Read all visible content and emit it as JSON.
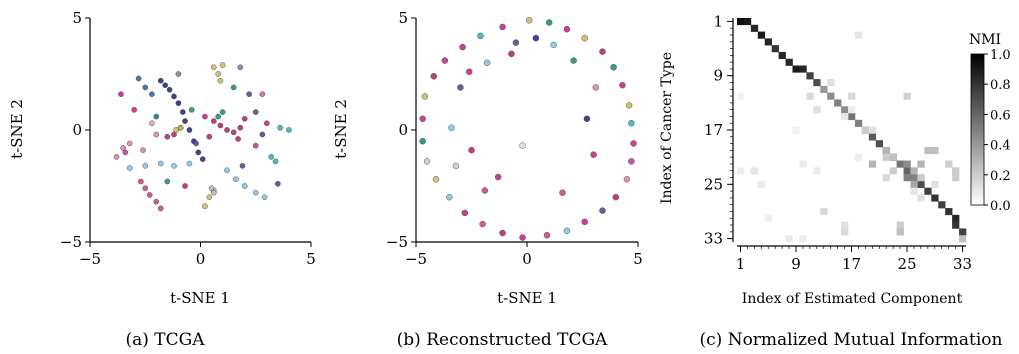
{
  "panels": {
    "a": {
      "caption": "(a) TCGA"
    },
    "b": {
      "caption": "(b) Reconstructed TCGA"
    },
    "c": {
      "caption": "(c) Normalized Mutual Information"
    }
  },
  "chart_data": [
    {
      "type": "scatter",
      "id": "tcga",
      "xlabel": "t-SNE 1",
      "ylabel": "t-SNE 2",
      "xlim": [
        -5,
        5
      ],
      "ylim": [
        -5,
        5
      ],
      "xticks": [
        -5,
        0,
        5
      ],
      "yticks": [
        -5,
        0,
        5
      ],
      "xtick_labels": [
        "−5",
        "0",
        "5"
      ],
      "ytick_labels": [
        "−5",
        "0",
        "5"
      ],
      "grid": false,
      "points": [
        {
          "x": -1.8,
          "y": 2.2,
          "c": "#2b2f7f"
        },
        {
          "x": -1.6,
          "y": 2.0,
          "c": "#2b2f7f"
        },
        {
          "x": -1.4,
          "y": 1.8,
          "c": "#2b2f7f"
        },
        {
          "x": -1.2,
          "y": 1.5,
          "c": "#2b2f7f"
        },
        {
          "x": -1.0,
          "y": 1.2,
          "c": "#2b2f7f"
        },
        {
          "x": -0.8,
          "y": 0.8,
          "c": "#2b2f7f"
        },
        {
          "x": -0.7,
          "y": 0.4,
          "c": "#2b2f7f"
        },
        {
          "x": -0.5,
          "y": 0.0,
          "c": "#2b2f7f"
        },
        {
          "x": -0.3,
          "y": -0.5,
          "c": "#2b2f7f"
        },
        {
          "x": -0.1,
          "y": -1.0,
          "c": "#2b2f7f"
        },
        {
          "x": 0.1,
          "y": -1.3,
          "c": "#2b2f7f"
        },
        {
          "x": -2.8,
          "y": 2.3,
          "c": "#2f6f9f"
        },
        {
          "x": -2.5,
          "y": 1.9,
          "c": "#2f6f9f"
        },
        {
          "x": -2.2,
          "y": 1.6,
          "c": "#2f6f9f"
        },
        {
          "x": -1.5,
          "y": -0.3,
          "c": "#b22d6b"
        },
        {
          "x": -1.2,
          "y": -0.2,
          "c": "#b22d6b"
        },
        {
          "x": -0.9,
          "y": 0.1,
          "c": "#b22d6b"
        },
        {
          "x": 0.6,
          "y": 0.4,
          "c": "#b22d6b"
        },
        {
          "x": 0.9,
          "y": 0.2,
          "c": "#b22d6b"
        },
        {
          "x": 1.2,
          "y": 0.0,
          "c": "#b22d6b"
        },
        {
          "x": 1.5,
          "y": -0.1,
          "c": "#b22d6b"
        },
        {
          "x": 1.8,
          "y": 0.1,
          "c": "#b22d6b"
        },
        {
          "x": 2.0,
          "y": 0.5,
          "c": "#b22d6b"
        },
        {
          "x": 1.7,
          "y": -0.4,
          "c": "#b22d6b"
        },
        {
          "x": 0.4,
          "y": -0.3,
          "c": "#b22d6b"
        },
        {
          "x": 0.2,
          "y": 0.6,
          "c": "#c82a8a"
        },
        {
          "x": -3.5,
          "y": -0.8,
          "c": "#de84b6"
        },
        {
          "x": -3.2,
          "y": -0.6,
          "c": "#de84b6"
        },
        {
          "x": -3.8,
          "y": -1.2,
          "c": "#de84b6"
        },
        {
          "x": -2.6,
          "y": -0.9,
          "c": "#de84b6"
        },
        {
          "x": -2.0,
          "y": -0.2,
          "c": "#de84b6"
        },
        {
          "x": -3.2,
          "y": -1.7,
          "c": "#87c7e8"
        },
        {
          "x": -2.5,
          "y": -1.6,
          "c": "#87c7e8"
        },
        {
          "x": -1.8,
          "y": -1.5,
          "c": "#87c7e8"
        },
        {
          "x": -1.2,
          "y": -1.6,
          "c": "#87c7e8"
        },
        {
          "x": -0.5,
          "y": -1.5,
          "c": "#87c7e8"
        },
        {
          "x": 1.2,
          "y": -1.8,
          "c": "#87c7e8"
        },
        {
          "x": 1.6,
          "y": -2.2,
          "c": "#87c7e8"
        },
        {
          "x": 2.0,
          "y": -2.5,
          "c": "#87c7e8"
        },
        {
          "x": 2.5,
          "y": -2.8,
          "c": "#87c7e8"
        },
        {
          "x": 2.9,
          "y": -3.0,
          "c": "#87c7e8"
        },
        {
          "x": -2.5,
          "y": -2.6,
          "c": "#cf4d6f"
        },
        {
          "x": -2.3,
          "y": -2.9,
          "c": "#cf4d6f"
        },
        {
          "x": -2.0,
          "y": -3.2,
          "c": "#cf4d6f"
        },
        {
          "x": -1.8,
          "y": -3.5,
          "c": "#cf4d6f"
        },
        {
          "x": -2.7,
          "y": -2.3,
          "c": "#cf4d6f"
        },
        {
          "x": 0.6,
          "y": 2.8,
          "c": "#d2b86a"
        },
        {
          "x": 0.8,
          "y": 2.5,
          "c": "#d2b86a"
        },
        {
          "x": 0.9,
          "y": 2.2,
          "c": "#d2b86a"
        },
        {
          "x": 1.0,
          "y": 2.9,
          "c": "#d2b86a"
        },
        {
          "x": -0.9,
          "y": 0.1,
          "c": "#c7c05a"
        },
        {
          "x": -1.1,
          "y": 0.0,
          "c": "#c7c05a"
        },
        {
          "x": 0.2,
          "y": -3.4,
          "c": "#d2b86a"
        },
        {
          "x": 0.4,
          "y": -3.0,
          "c": "#d2b86a"
        },
        {
          "x": 0.6,
          "y": -2.7,
          "c": "#d2b86a"
        },
        {
          "x": 0.8,
          "y": 0.6,
          "c": "#23936b"
        },
        {
          "x": 1.0,
          "y": 0.8,
          "c": "#23936b"
        },
        {
          "x": -0.4,
          "y": 0.9,
          "c": "#23936b"
        },
        {
          "x": 1.5,
          "y": 1.9,
          "c": "#23936b"
        },
        {
          "x": 2.8,
          "y": -0.2,
          "c": "#5b4a8c"
        },
        {
          "x": 2.5,
          "y": 0.8,
          "c": "#5b4a8c"
        },
        {
          "x": 2.2,
          "y": 1.6,
          "c": "#5b4a8c"
        },
        {
          "x": 1.9,
          "y": -1.6,
          "c": "#5b4a8c"
        },
        {
          "x": -0.2,
          "y": -0.6,
          "c": "#5b4a8c"
        },
        {
          "x": 3.2,
          "y": -1.2,
          "c": "#3bb6b0"
        },
        {
          "x": 3.4,
          "y": -1.4,
          "c": "#3bb6b0"
        },
        {
          "x": 4.0,
          "y": 0.0,
          "c": "#3bb6b0"
        },
        {
          "x": 3.6,
          "y": 0.1,
          "c": "#3bb6b0"
        },
        {
          "x": -3.6,
          "y": 1.6,
          "c": "#c82a8a"
        },
        {
          "x": -3.0,
          "y": 0.9,
          "c": "#c82a8a"
        },
        {
          "x": -3.4,
          "y": -1.0,
          "c": "#b04f95"
        },
        {
          "x": 1.8,
          "y": 2.8,
          "c": "#7f7fb0"
        },
        {
          "x": 2.8,
          "y": 1.6,
          "c": "#c96bb0"
        },
        {
          "x": 3.0,
          "y": 0.3,
          "c": "#c82a8a"
        },
        {
          "x": 0.5,
          "y": -2.6,
          "c": "#bbbbbb"
        },
        {
          "x": 0.6,
          "y": -2.8,
          "c": "#bbbbbb"
        },
        {
          "x": -1.0,
          "y": 2.5,
          "c": "#888888"
        },
        {
          "x": -2.2,
          "y": 0.3,
          "c": "#e0a1c0"
        },
        {
          "x": -2.0,
          "y": 0.6,
          "c": "#1f7a8c"
        },
        {
          "x": -1.5,
          "y": -2.3,
          "c": "#23936b"
        },
        {
          "x": 2.5,
          "y": -0.7,
          "c": "#b9448a"
        },
        {
          "x": 3.5,
          "y": -2.4,
          "c": "#5b4a8c"
        },
        {
          "x": -0.7,
          "y": -2.5,
          "c": "#b22d6b"
        }
      ]
    },
    {
      "type": "scatter",
      "id": "reconstructed",
      "xlabel": "t-SNE 1",
      "ylabel": "t-SNE 2",
      "xlim": [
        -5,
        5
      ],
      "ylim": [
        -5,
        5
      ],
      "xticks": [
        -5,
        0,
        5
      ],
      "yticks": [
        -5,
        0,
        5
      ],
      "xtick_labels": [
        "−5",
        "0",
        "5"
      ],
      "ytick_labels": [
        "−5",
        "0",
        "5"
      ],
      "grid": false,
      "points": [
        {
          "x": 0.1,
          "y": 4.9,
          "c": "#d2b86a"
        },
        {
          "x": 1.0,
          "y": 4.8,
          "c": "#23936b"
        },
        {
          "x": 1.8,
          "y": 4.5,
          "c": "#c82a8a"
        },
        {
          "x": 2.6,
          "y": 4.1,
          "c": "#d2b86a"
        },
        {
          "x": 3.4,
          "y": 3.5,
          "c": "#b22d6b"
        },
        {
          "x": 3.9,
          "y": 2.8,
          "c": "#23936b"
        },
        {
          "x": 4.3,
          "y": 2.0,
          "c": "#c82a8a"
        },
        {
          "x": 4.6,
          "y": 1.1,
          "c": "#c7c05a"
        },
        {
          "x": 4.7,
          "y": 0.3,
          "c": "#3bb6b0"
        },
        {
          "x": 4.8,
          "y": -0.6,
          "c": "#c82a8a"
        },
        {
          "x": 4.7,
          "y": -1.4,
          "c": "#b04f95"
        },
        {
          "x": 4.5,
          "y": -2.2,
          "c": "#de84b6"
        },
        {
          "x": 4.0,
          "y": -3.0,
          "c": "#b22d6b"
        },
        {
          "x": 3.4,
          "y": -3.6,
          "c": "#5b4a8c"
        },
        {
          "x": 2.6,
          "y": -4.1,
          "c": "#c82a8a"
        },
        {
          "x": 1.8,
          "y": -4.5,
          "c": "#87c7e8"
        },
        {
          "x": 0.9,
          "y": -4.7,
          "c": "#cf4d6f"
        },
        {
          "x": -0.2,
          "y": -4.8,
          "c": "#c82a8a"
        },
        {
          "x": -1.1,
          "y": -4.6,
          "c": "#b22d6b"
        },
        {
          "x": -2.0,
          "y": -4.2,
          "c": "#cf4d6f"
        },
        {
          "x": -2.8,
          "y": -3.7,
          "c": "#c82a8a"
        },
        {
          "x": -3.5,
          "y": -3.0,
          "c": "#87c7e8"
        },
        {
          "x": -4.1,
          "y": -2.2,
          "c": "#d2b86a"
        },
        {
          "x": -4.5,
          "y": -1.4,
          "c": "#cccccc"
        },
        {
          "x": -4.7,
          "y": -0.5,
          "c": "#23936b"
        },
        {
          "x": -4.7,
          "y": 0.5,
          "c": "#c82a8a"
        },
        {
          "x": -4.6,
          "y": 1.5,
          "c": "#c7c05a"
        },
        {
          "x": -4.2,
          "y": 2.4,
          "c": "#b22d6b"
        },
        {
          "x": -3.7,
          "y": 3.1,
          "c": "#c82a8a"
        },
        {
          "x": -2.9,
          "y": 3.7,
          "c": "#c82a8a"
        },
        {
          "x": -2.1,
          "y": 4.2,
          "c": "#3bb6b0"
        },
        {
          "x": -1.1,
          "y": 4.6,
          "c": "#c82a8a"
        },
        {
          "x": 0.4,
          "y": 4.1,
          "c": "#2b2f7f"
        },
        {
          "x": -0.5,
          "y": 3.9,
          "c": "#5b4a8c"
        },
        {
          "x": 1.2,
          "y": 3.8,
          "c": "#87c7e8"
        },
        {
          "x": -1.8,
          "y": 3.0,
          "c": "#87c7e8"
        },
        {
          "x": -2.6,
          "y": 2.6,
          "c": "#c82a8a"
        },
        {
          "x": 3.1,
          "y": 1.9,
          "c": "#de84b6"
        },
        {
          "x": 2.7,
          "y": 0.5,
          "c": "#2b2f7f"
        },
        {
          "x": -3.0,
          "y": 1.9,
          "c": "#5b4a8c"
        },
        {
          "x": -3.4,
          "y": 0.1,
          "c": "#87c7e8"
        },
        {
          "x": -2.5,
          "y": -0.9,
          "c": "#b22d6b"
        },
        {
          "x": -1.3,
          "y": -2.1,
          "c": "#c82a8a"
        },
        {
          "x": -1.9,
          "y": -2.7,
          "c": "#cf4d6f"
        },
        {
          "x": 1.6,
          "y": -2.8,
          "c": "#cf4d6f"
        },
        {
          "x": 3.0,
          "y": -1.1,
          "c": "#c82a8a"
        },
        {
          "x": -3.2,
          "y": -1.6,
          "c": "#cccccc"
        },
        {
          "x": -0.2,
          "y": -0.7,
          "c": "#dddddd"
        },
        {
          "x": 2.1,
          "y": 3.1,
          "c": "#23936b"
        },
        {
          "x": -0.7,
          "y": 3.4,
          "c": "#b22d6b"
        }
      ]
    },
    {
      "type": "heatmap",
      "id": "nmi",
      "xlabel": "Index of Estimated Component",
      "ylabel": "Index of Cancer Type",
      "rows": 33,
      "cols": 33,
      "xtick_labels": [
        "1",
        "9",
        "17",
        "25",
        "33"
      ],
      "ytick_labels": [
        "1",
        "9",
        "17",
        "25",
        "33"
      ],
      "colorbar": {
        "label": "NMI",
        "ticks": [
          "0.0",
          "0.2",
          "0.4",
          "0.6",
          "0.8",
          "1.0"
        ],
        "vmin": 0,
        "vmax": 1
      },
      "cells": [
        [
          1,
          1,
          0.95
        ],
        [
          1,
          2,
          0.9
        ],
        [
          2,
          3,
          0.85
        ],
        [
          3,
          4,
          0.9
        ],
        [
          4,
          5,
          0.85
        ],
        [
          5,
          6,
          0.8
        ],
        [
          6,
          7,
          0.85
        ],
        [
          7,
          8,
          0.85
        ],
        [
          8,
          9,
          0.9
        ],
        [
          8,
          10,
          0.85
        ],
        [
          9,
          11,
          0.75
        ],
        [
          10,
          12,
          0.7
        ],
        [
          11,
          13,
          0.4
        ],
        [
          12,
          14,
          0.45
        ],
        [
          13,
          15,
          0.5
        ],
        [
          14,
          16,
          0.45
        ],
        [
          15,
          17,
          0.55
        ],
        [
          16,
          18,
          0.5
        ],
        [
          17,
          19,
          0.6
        ],
        [
          18,
          20,
          0.65
        ],
        [
          19,
          21,
          0.7
        ],
        [
          20,
          22,
          0.75
        ],
        [
          21,
          23,
          0.65
        ],
        [
          22,
          24,
          0.55
        ],
        [
          23,
          25,
          0.6
        ],
        [
          24,
          26,
          0.5
        ],
        [
          25,
          27,
          0.7
        ],
        [
          26,
          28,
          0.75
        ],
        [
          27,
          29,
          0.8
        ],
        [
          28,
          30,
          0.75
        ],
        [
          29,
          31,
          0.8
        ],
        [
          30,
          32,
          0.85
        ],
        [
          31,
          32,
          0.8
        ],
        [
          32,
          33,
          0.75
        ],
        [
          3,
          18,
          0.1
        ],
        [
          10,
          14,
          0.12
        ],
        [
          12,
          11,
          0.15
        ],
        [
          12,
          17,
          0.15
        ],
        [
          12,
          25,
          0.18
        ],
        [
          14,
          12,
          0.12
        ],
        [
          15,
          16,
          0.1
        ],
        [
          17,
          19,
          0.2
        ],
        [
          17,
          20,
          0.12
        ],
        [
          20,
          22,
          0.3
        ],
        [
          21,
          22,
          0.2
        ],
        [
          21,
          23,
          0.25
        ],
        [
          22,
          20,
          0.3
        ],
        [
          22,
          25,
          0.45
        ],
        [
          22,
          27,
          0.3
        ],
        [
          23,
          23,
          0.2
        ],
        [
          23,
          26,
          0.3
        ],
        [
          24,
          22,
          0.15
        ],
        [
          24,
          25,
          0.5
        ],
        [
          24,
          27,
          0.2
        ],
        [
          25,
          26,
          0.35
        ],
        [
          25,
          29,
          0.12
        ],
        [
          20,
          28,
          0.25
        ],
        [
          20,
          29,
          0.25
        ],
        [
          22,
          31,
          0.2
        ],
        [
          23,
          32,
          0.2
        ],
        [
          24,
          32,
          0.2
        ],
        [
          26,
          26,
          0.1
        ],
        [
          27,
          27,
          0.12
        ],
        [
          29,
          13,
          0.15
        ],
        [
          31,
          16,
          0.12
        ],
        [
          32,
          16,
          0.15
        ],
        [
          31,
          24,
          0.2
        ],
        [
          32,
          24,
          0.25
        ],
        [
          33,
          33,
          0.25
        ],
        [
          23,
          1,
          0.08
        ],
        [
          23,
          3,
          0.1
        ],
        [
          25,
          4,
          0.08
        ],
        [
          22,
          10,
          0.08
        ],
        [
          23,
          12,
          0.08
        ],
        [
          33,
          8,
          0.08
        ],
        [
          33,
          10,
          0.08
        ],
        [
          21,
          18,
          0.08
        ],
        [
          14,
          17,
          0.08
        ],
        [
          17,
          9,
          0.06
        ],
        [
          12,
          1,
          0.05
        ],
        [
          30,
          5,
          0.06
        ]
      ]
    }
  ]
}
